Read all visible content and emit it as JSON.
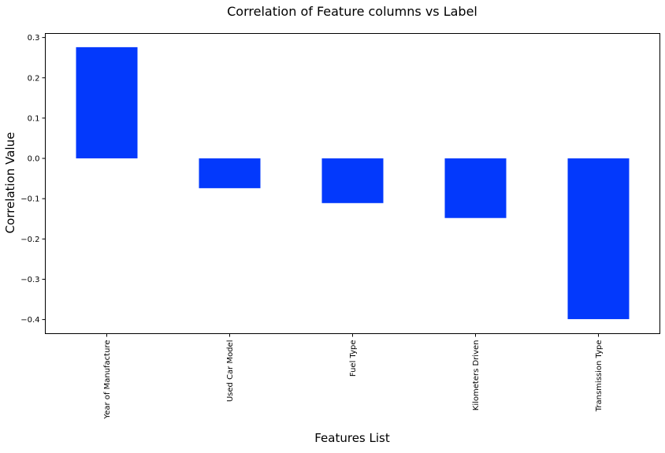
{
  "chart_data": {
    "type": "bar",
    "title": "Correlation of Feature columns vs Label",
    "xlabel": "Features List",
    "ylabel": "Correlation Value",
    "categories": [
      "Year of Manufacture",
      "Used Car Model",
      "Fuel Type",
      "Kilometers Driven",
      "Transmission Type"
    ],
    "values": [
      0.276,
      -0.074,
      -0.111,
      -0.148,
      -0.399
    ],
    "ylim": [
      -0.435,
      0.31
    ],
    "yticks": [
      0.3,
      0.2,
      0.1,
      0.0,
      -0.1,
      -0.2,
      -0.3,
      -0.4
    ],
    "ytick_labels": [
      "0.3",
      "0.2",
      "0.1",
      "0.0",
      "−0.1",
      "−0.2",
      "−0.3",
      "−0.4"
    ],
    "bar_color": "#0339fc",
    "grid": false,
    "legend": false
  }
}
